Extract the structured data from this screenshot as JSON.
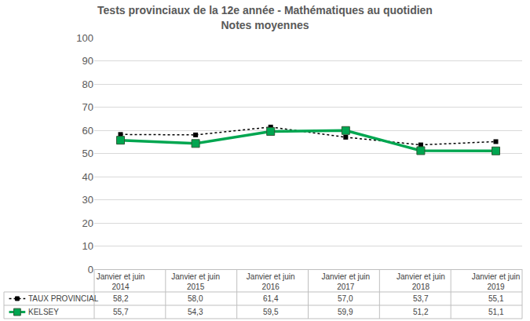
{
  "chart_data": {
    "type": "line",
    "title": [
      "Tests provinciaux de la 12e année - Mathématiques au quotidien",
      "Notes moyennes"
    ],
    "categories": [
      "Janvier et juin 2014",
      "Janvier et juin 2015",
      "Janvier et juin 2016",
      "Janvier et juin 2017",
      "Janvier et juin 2018",
      "Janvier et juin 2019"
    ],
    "series": [
      {
        "name": "TAUX PROVINCIAL",
        "color": "#000000",
        "marker": "square",
        "line_style": "dotted",
        "values": [
          58.2,
          58.0,
          61.4,
          57.0,
          53.7,
          55.1
        ],
        "value_labels": [
          "58,2",
          "58,0",
          "61,4",
          "57,0",
          "53,7",
          "55,1"
        ]
      },
      {
        "name": "KELSEY",
        "color": "#00a650",
        "marker": "square",
        "line_style": "solid",
        "values": [
          55.7,
          54.3,
          59.5,
          59.9,
          51.2,
          51.1
        ],
        "value_labels": [
          "55,7",
          "54,3",
          "59,5",
          "59,9",
          "51,2",
          "51,1"
        ]
      }
    ],
    "ylim": [
      0,
      100
    ],
    "yticks": [
      0,
      10,
      20,
      30,
      40,
      50,
      60,
      70,
      80,
      90,
      100
    ],
    "grid": true,
    "data_labels": true
  }
}
